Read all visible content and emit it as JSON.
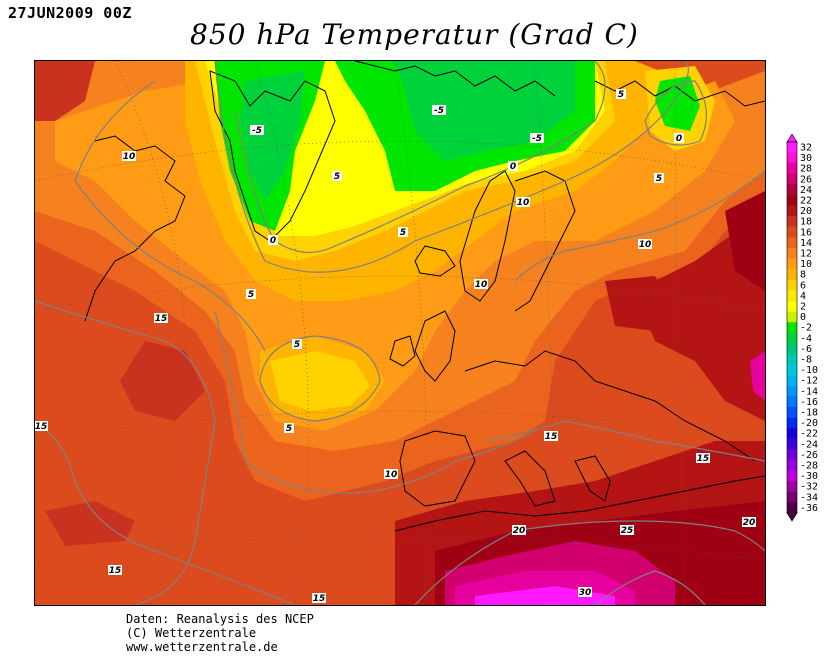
{
  "header": {
    "date": "27JUN2009 00Z",
    "title": "850 hPa Temperatur (Grad C)"
  },
  "map": {
    "region": "North Atlantic and Europe",
    "contour_labels": [
      "-5",
      "-5",
      "-5",
      "5",
      "0",
      "0",
      "0",
      "5",
      "5",
      "10",
      "10",
      "10",
      "10",
      "5",
      "5",
      "15",
      "5",
      "5",
      "15",
      "10",
      "15",
      "15",
      "20",
      "25",
      "20",
      "15",
      "15",
      "30"
    ]
  },
  "legend": {
    "unit": "Grad C",
    "values": [
      "32",
      "30",
      "28",
      "26",
      "24",
      "22",
      "20",
      "18",
      "16",
      "14",
      "12",
      "10",
      "8",
      "6",
      "4",
      "2",
      "0",
      "-2",
      "-4",
      "-6",
      "-8",
      "-10",
      "-12",
      "-14",
      "-16",
      "-18",
      "-20",
      "-22",
      "-24",
      "-26",
      "-28",
      "-30",
      "-32",
      "-34",
      "-36"
    ],
    "colors": [
      "#ff19ff",
      "#ff0fd4",
      "#e6009e",
      "#d2006e",
      "#b4003c",
      "#a00014",
      "#b41414",
      "#c8321e",
      "#dc4b1e",
      "#eb641e",
      "#f5821e",
      "#ff9b14",
      "#ffb400",
      "#ffd200",
      "#ffe600",
      "#ffff00",
      "#c8f000",
      "#00e600",
      "#00d23c",
      "#00c878",
      "#00c8b4",
      "#00c8dc",
      "#00b4f0",
      "#0096ff",
      "#0078ff",
      "#0050ff",
      "#0028f0",
      "#1400dc",
      "#3c00dc",
      "#6e00dc",
      "#9600dc",
      "#be00dc",
      "#a0009e",
      "#78006e",
      "#500046"
    ]
  },
  "footer": {
    "line1": "Daten: Reanalysis des NCEP",
    "line2": "(C) Wetterzentrale",
    "line3": "www.wetterzentrale.de"
  }
}
